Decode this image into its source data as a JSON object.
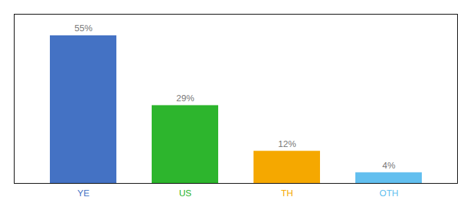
{
  "chart_data": {
    "type": "bar",
    "categories": [
      "YE",
      "US",
      "TH",
      "OTH"
    ],
    "values": [
      55,
      29,
      12,
      4
    ],
    "value_labels": [
      "55%",
      "29%",
      "12%",
      "4%"
    ],
    "data_labels": true,
    "colors": [
      "#4472c4",
      "#2db52d",
      "#f5a800",
      "#62bfef"
    ],
    "ylim": [
      0,
      63
    ],
    "tick_labels": "x",
    "grid": false
  }
}
